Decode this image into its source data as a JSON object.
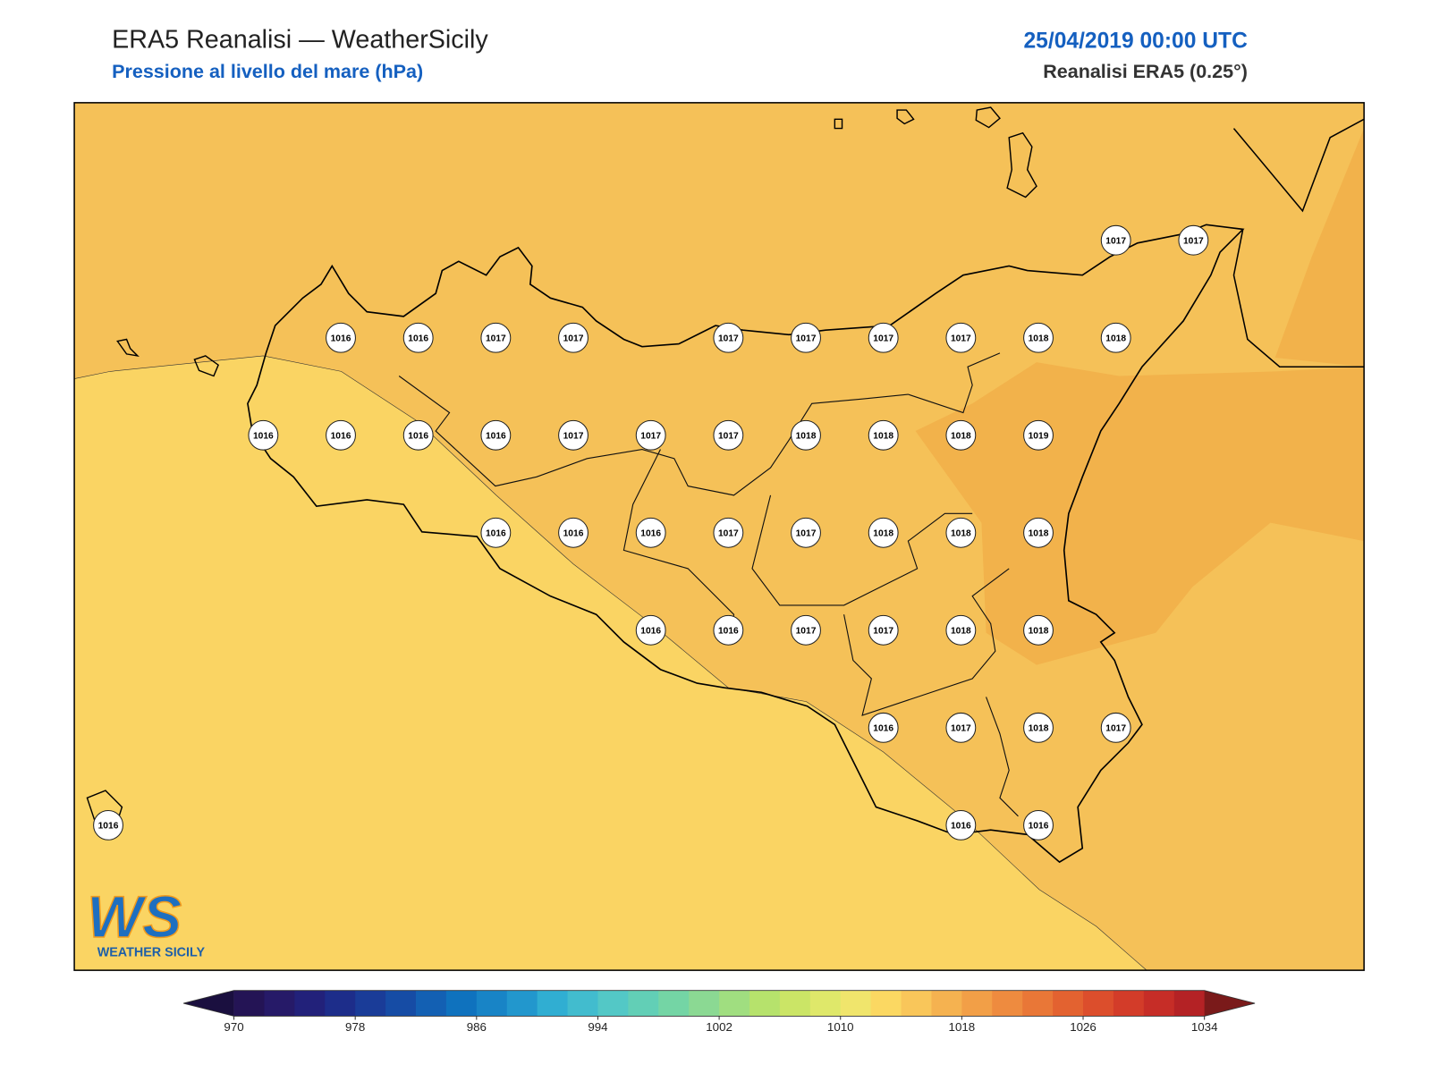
{
  "header": {
    "title": "ERA5 Reanalisi — WeatherSicily",
    "subtitle": "Pressione al livello del mare (hPa)",
    "date": "25/04/2019 00:00 UTC",
    "source": "Reanalisi ERA5 (0.25°)"
  },
  "stations": [
    1017,
    1017,
    1016,
    1016,
    1017,
    1017,
    1017,
    1017,
    1017,
    1017,
    1018,
    1018,
    1016,
    1016,
    1016,
    1016,
    1017,
    1017,
    1017,
    1018,
    1018,
    1018,
    1019,
    1016,
    1016,
    1016,
    1017,
    1017,
    1018,
    1018,
    1018,
    1016,
    1016,
    1017,
    1017,
    1018,
    1018,
    1016,
    1017,
    1018,
    1017,
    1016,
    1016,
    1016
  ],
  "colorbar": {
    "ticks": [
      970,
      978,
      986,
      994,
      1002,
      1010,
      1018,
      1026,
      1034
    ],
    "colors": [
      "#241455",
      "#261a68",
      "#22217a",
      "#1d2d8a",
      "#1a3c98",
      "#164ca5",
      "#1360b3",
      "#0f72be",
      "#1884c6",
      "#2297cd",
      "#30aed2",
      "#42bcce",
      "#53c8c6",
      "#62cfb6",
      "#74d5a5",
      "#8bd993",
      "#a0de80",
      "#b6e26c",
      "#cbe566",
      "#dfe86a",
      "#f0e56c",
      "#fbd862",
      "#f9c65a",
      "#f5b250",
      "#f29f47",
      "#ee8b3f",
      "#e97737",
      "#e36230",
      "#dc4e2c",
      "#d33c29",
      "#c62d27",
      "#b42225"
    ]
  },
  "logo": {
    "mark": "WS",
    "name": "WEATHER SICILY"
  }
}
